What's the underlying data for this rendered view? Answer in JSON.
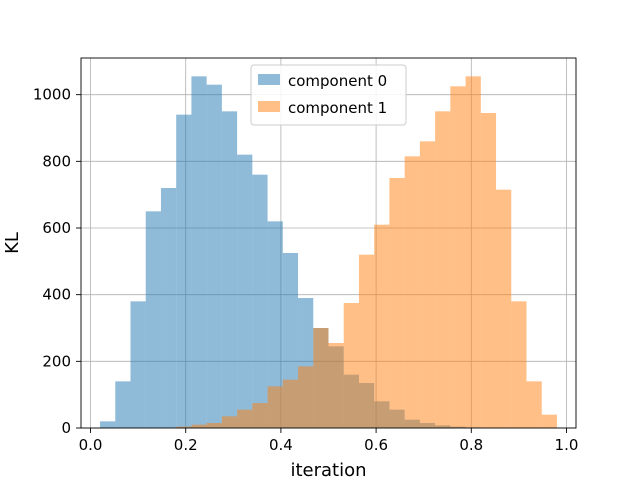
{
  "chart_data": {
    "type": "bar",
    "subtype": "overlapping-histogram",
    "title": "",
    "xlabel": "iteration",
    "ylabel": "KL",
    "xlim": [
      -0.02,
      1.02
    ],
    "ylim": [
      0,
      1110
    ],
    "xticks": [
      0.0,
      0.2,
      0.4,
      0.6,
      0.8,
      1.0
    ],
    "xtick_labels": [
      "0.0",
      "0.2",
      "0.4",
      "0.6",
      "0.8",
      "1.0"
    ],
    "yticks": [
      0,
      200,
      400,
      600,
      800,
      1000
    ],
    "ytick_labels": [
      "0",
      "200",
      "400",
      "600",
      "800",
      "1000"
    ],
    "grid": true,
    "legend_position": "top-center",
    "bin_width": 0.032,
    "series": [
      {
        "name": "component 0",
        "color": "#1f77b4",
        "alpha": 0.5,
        "bin_starts": [
          0.02,
          0.052,
          0.084,
          0.116,
          0.148,
          0.18,
          0.212,
          0.244,
          0.276,
          0.308,
          0.34,
          0.372,
          0.404,
          0.436,
          0.468,
          0.5,
          0.532,
          0.564,
          0.596,
          0.628,
          0.66,
          0.692,
          0.724,
          0.756,
          0.788
        ],
        "values": [
          20,
          140,
          380,
          650,
          720,
          940,
          1055,
          1030,
          950,
          820,
          760,
          620,
          525,
          390,
          300,
          245,
          160,
          135,
          80,
          55,
          25,
          15,
          8,
          4,
          2
        ]
      },
      {
        "name": "component 1",
        "color": "#ff7f0e",
        "alpha": 0.5,
        "bin_starts": [
          0.18,
          0.212,
          0.244,
          0.276,
          0.308,
          0.34,
          0.372,
          0.404,
          0.436,
          0.468,
          0.5,
          0.532,
          0.564,
          0.596,
          0.628,
          0.66,
          0.692,
          0.724,
          0.756,
          0.788,
          0.82,
          0.852,
          0.884,
          0.916,
          0.948
        ],
        "values": [
          4,
          10,
          15,
          35,
          55,
          75,
          125,
          145,
          185,
          300,
          255,
          375,
          520,
          610,
          750,
          815,
          860,
          950,
          1025,
          1055,
          945,
          715,
          380,
          140,
          40
        ]
      }
    ]
  }
}
